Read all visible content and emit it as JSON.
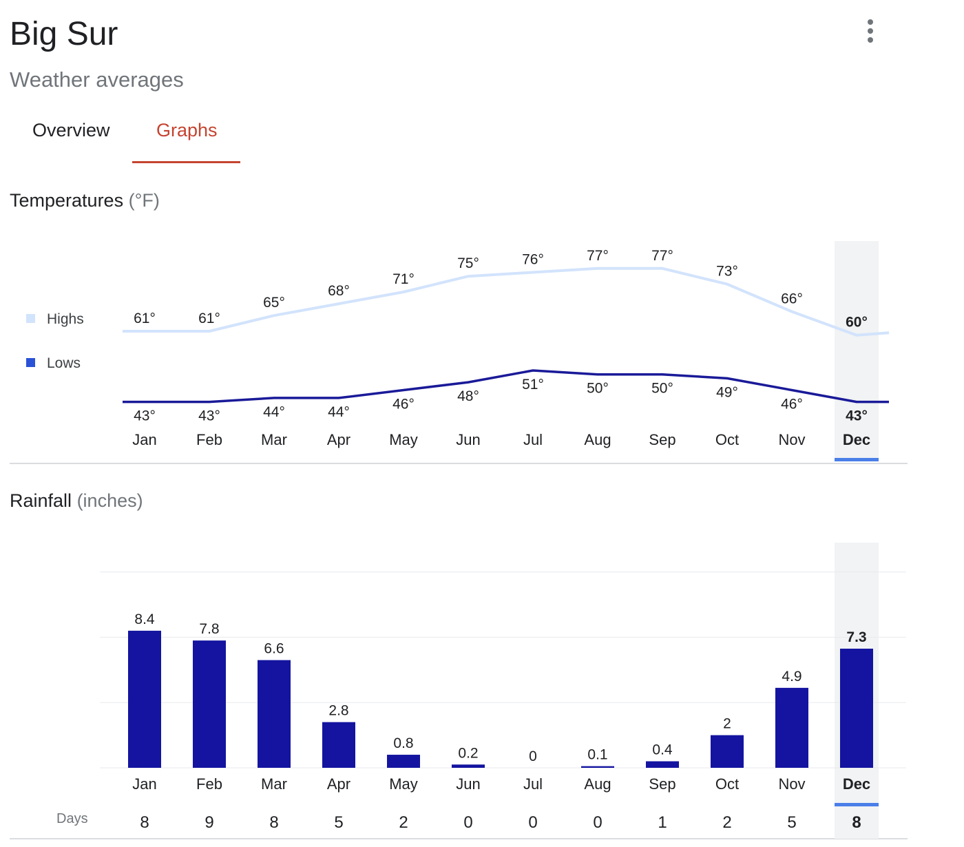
{
  "header": {
    "title": "Big Sur",
    "subtitle": "Weather averages",
    "menu_icon": "more-vert-icon"
  },
  "tabs": [
    {
      "label": "Overview",
      "active": false
    },
    {
      "label": "Graphs",
      "active": true
    }
  ],
  "colors": {
    "accent": "#c5432f",
    "highs": "#d2e3fc",
    "lows": "#1a1a99",
    "bars": "#1414a0",
    "selected": "#4a7ee8"
  },
  "selected_month": "Dec",
  "temperatures": {
    "heading": "Temperatures",
    "unit": "(°F)",
    "legend": [
      {
        "label": "Highs"
      },
      {
        "label": "Lows"
      }
    ]
  },
  "rainfall": {
    "heading": "Rainfall",
    "unit": "(inches)",
    "days_label": "Days"
  },
  "chart_data": [
    {
      "type": "line",
      "categories": [
        "Jan",
        "Feb",
        "Mar",
        "Apr",
        "May",
        "Jun",
        "Jul",
        "Aug",
        "Sep",
        "Oct",
        "Nov",
        "Dec"
      ],
      "series": [
        {
          "name": "Highs",
          "values": [
            61,
            61,
            65,
            68,
            71,
            75,
            76,
            77,
            77,
            73,
            66,
            60
          ],
          "labels": [
            "61°",
            "61°",
            "65°",
            "68°",
            "71°",
            "75°",
            "76°",
            "77°",
            "77°",
            "73°",
            "66°",
            "60°"
          ]
        },
        {
          "name": "Lows",
          "values": [
            43,
            43,
            44,
            44,
            46,
            48,
            51,
            50,
            50,
            49,
            46,
            43
          ],
          "labels": [
            "43°",
            "43°",
            "44°",
            "44°",
            "46°",
            "48°",
            "51°",
            "50°",
            "50°",
            "49°",
            "46°",
            "43°"
          ]
        }
      ]
    },
    {
      "type": "bar",
      "categories": [
        "Jan",
        "Feb",
        "Mar",
        "Apr",
        "May",
        "Jun",
        "Jul",
        "Aug",
        "Sep",
        "Oct",
        "Nov",
        "Dec"
      ],
      "values": [
        8.4,
        7.8,
        6.6,
        2.8,
        0.8,
        0.2,
        0,
        0.1,
        0.4,
        2,
        4.9,
        7.3
      ],
      "labels": [
        "8.4",
        "7.8",
        "6.6",
        "2.8",
        "0.8",
        "0.2",
        "0",
        "0.1",
        "0.4",
        "2",
        "4.9",
        "7.3"
      ],
      "ylim": [
        0,
        12
      ],
      "gridlines": [
        4,
        8,
        12
      ],
      "days": [
        "8",
        "9",
        "8",
        "5",
        "2",
        "0",
        "0",
        "0",
        "1",
        "2",
        "5",
        "8"
      ]
    }
  ]
}
